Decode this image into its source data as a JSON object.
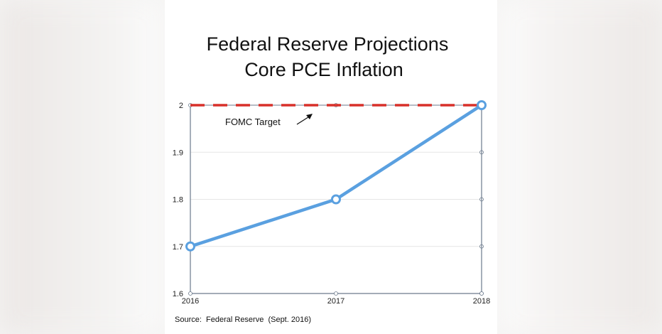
{
  "chart_data": {
    "type": "line",
    "title": "Federal Reserve Projections",
    "subtitle": "Core PCE Inflation",
    "x": [
      "2016",
      "2017",
      "2018"
    ],
    "series": [
      {
        "values": [
          1.7,
          1.8,
          2.0
        ],
        "color": "#5aa0e0",
        "marker": "hollow-circle"
      }
    ],
    "reference_line": {
      "y": 2.0,
      "label": "FOMC Target",
      "color": "#d8302a",
      "style": "dashed"
    },
    "ylim": [
      1.6,
      2.0
    ],
    "yticks": [
      "1.6",
      "1.7",
      "1.8",
      "1.9",
      "2"
    ],
    "grid": true,
    "xlabel": "",
    "ylabel": ""
  },
  "source_text": "Source:  Federal Reserve  (Sept. 2016)",
  "colors": {
    "axis": "#6c7a8c",
    "grid": "#e6e6e6"
  }
}
